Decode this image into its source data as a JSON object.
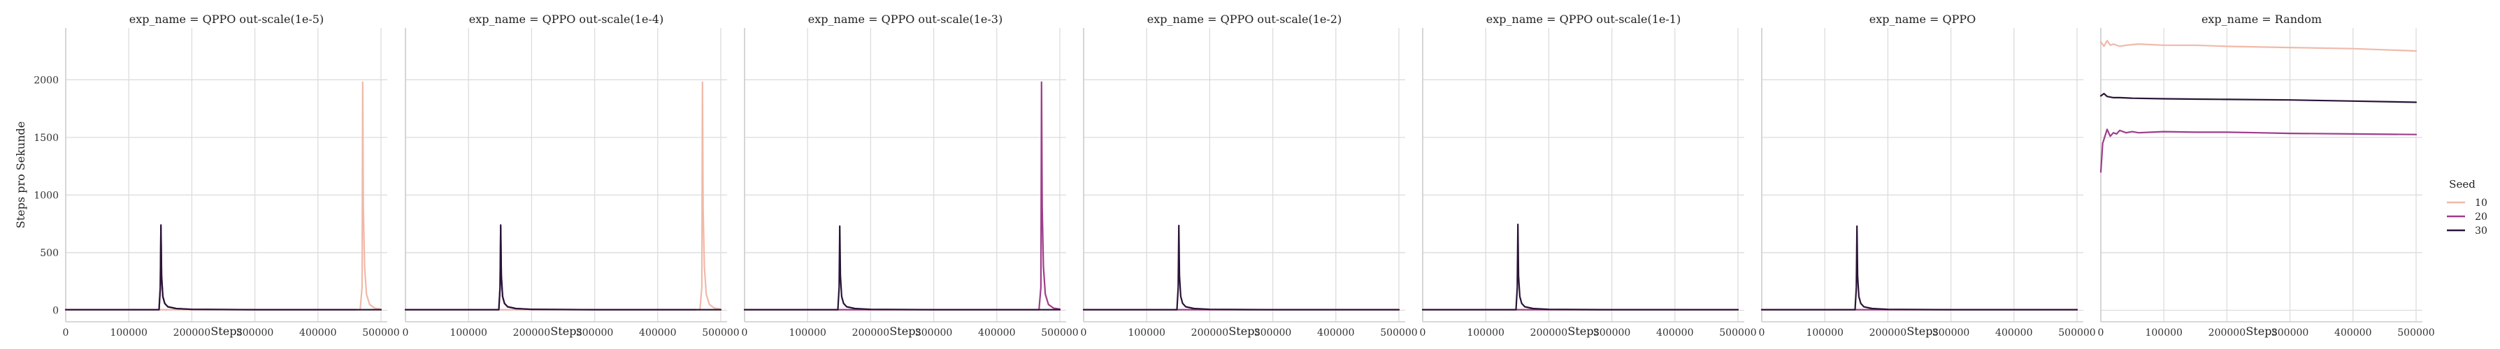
{
  "chart_data": {
    "type": "line",
    "ylabel": "Steps pro Sekunde",
    "xlabel": "Steps",
    "xlim": [
      0,
      510000
    ],
    "ylim": [
      -100,
      2450
    ],
    "x_ticks": [
      0,
      100000,
      200000,
      300000,
      400000,
      500000
    ],
    "y_ticks": [
      0,
      500,
      1000,
      1500,
      2000
    ],
    "grid": true,
    "legend": {
      "title": "Seed",
      "placement": "right",
      "entries": [
        {
          "label": "10",
          "color": "#f0b9a9"
        },
        {
          "label": "20",
          "color": "#9e3d8b"
        },
        {
          "label": "30",
          "color": "#2a1437"
        }
      ]
    },
    "panels": [
      {
        "title": "exp_name = QPPO out-scale(1e-5)",
        "series": [
          {
            "seed": "10",
            "x": [
              0,
              460000,
              467000,
              470000,
              471000,
              472000,
              474000,
              477000,
              482000,
              490000,
              500000
            ],
            "y": [
              5,
              5,
              5,
              200,
              1980,
              900,
              380,
              140,
              50,
              18,
              10
            ]
          },
          {
            "seed": "20",
            "x": [
              0,
              145000,
              148000,
              150000,
              151000,
              152000,
              154000,
              157000,
              162000,
              175000,
              200000,
              300000,
              400000,
              460000
            ],
            "y": [
              5,
              5,
              5,
              200,
              725,
              300,
              120,
              60,
              30,
              15,
              8,
              5,
              5,
              5
            ]
          },
          {
            "seed": "30",
            "x": [
              0,
              145000,
              148000,
              150000,
              151000,
              152000,
              154000,
              157000,
              162000,
              175000,
              200000,
              300000,
              400000,
              500000
            ],
            "y": [
              5,
              5,
              5,
              200,
              740,
              300,
              120,
              60,
              30,
              15,
              8,
              5,
              5,
              5
            ]
          }
        ]
      },
      {
        "title": "exp_name = QPPO out-scale(1e-4)",
        "series": [
          {
            "seed": "10",
            "x": [
              0,
              460000,
              467000,
              470000,
              471000,
              472000,
              474000,
              477000,
              482000,
              490000,
              500000
            ],
            "y": [
              5,
              5,
              5,
              200,
              1980,
              900,
              380,
              140,
              50,
              18,
              10
            ]
          },
          {
            "seed": "20",
            "x": [
              0,
              145000,
              148000,
              150000,
              151000,
              152000,
              154000,
              157000,
              162000,
              175000,
              200000,
              300000,
              400000,
              460000
            ],
            "y": [
              5,
              5,
              5,
              200,
              725,
              300,
              120,
              60,
              30,
              15,
              8,
              5,
              5,
              5
            ]
          },
          {
            "seed": "30",
            "x": [
              0,
              145000,
              148000,
              150000,
              151000,
              152000,
              154000,
              157000,
              162000,
              175000,
              200000,
              300000,
              400000,
              500000
            ],
            "y": [
              5,
              5,
              5,
              200,
              740,
              300,
              120,
              60,
              30,
              15,
              8,
              5,
              5,
              5
            ]
          }
        ]
      },
      {
        "title": "exp_name = QPPO out-scale(1e-3)",
        "series": [
          {
            "seed": "10",
            "x": [
              0,
              150000,
              300000,
              460000
            ],
            "y": [
              5,
              5,
              5,
              5
            ]
          },
          {
            "seed": "20",
            "x": [
              0,
              460000,
              467000,
              470000,
              471000,
              472000,
              474000,
              477000,
              482000,
              490000,
              500000
            ],
            "y": [
              5,
              5,
              5,
              200,
              1980,
              900,
              380,
              140,
              50,
              18,
              10
            ]
          },
          {
            "seed": "30",
            "x": [
              0,
              145000,
              148000,
              150000,
              151000,
              152000,
              154000,
              157000,
              162000,
              175000,
              200000,
              300000,
              400000,
              500000
            ],
            "y": [
              5,
              5,
              5,
              200,
              730,
              300,
              120,
              60,
              30,
              15,
              8,
              5,
              5,
              5
            ]
          }
        ]
      },
      {
        "title": "exp_name = QPPO out-scale(1e-2)",
        "series": [
          {
            "seed": "10",
            "x": [
              0,
              250000,
              500000
            ],
            "y": [
              5,
              5,
              5
            ]
          },
          {
            "seed": "20",
            "x": [
              0,
              250000,
              500000
            ],
            "y": [
              5,
              5,
              5
            ]
          },
          {
            "seed": "30",
            "x": [
              0,
              145000,
              148000,
              150000,
              151000,
              152000,
              154000,
              157000,
              162000,
              175000,
              200000,
              300000,
              400000,
              500000
            ],
            "y": [
              5,
              5,
              5,
              200,
              735,
              300,
              120,
              60,
              30,
              15,
              8,
              5,
              5,
              5
            ]
          }
        ]
      },
      {
        "title": "exp_name = QPPO out-scale(1e-1)",
        "series": [
          {
            "seed": "10",
            "x": [
              0,
              250000,
              500000
            ],
            "y": [
              5,
              5,
              5
            ]
          },
          {
            "seed": "20",
            "x": [
              0,
              250000,
              500000
            ],
            "y": [
              5,
              5,
              5
            ]
          },
          {
            "seed": "30",
            "x": [
              0,
              145000,
              148000,
              150000,
              151000,
              152000,
              154000,
              157000,
              162000,
              175000,
              200000,
              300000,
              400000,
              500000
            ],
            "y": [
              5,
              5,
              5,
              200,
              745,
              300,
              120,
              60,
              30,
              15,
              8,
              5,
              5,
              5
            ]
          }
        ]
      },
      {
        "title": "exp_name = QPPO",
        "series": [
          {
            "seed": "10",
            "x": [
              0,
              250000,
              500000
            ],
            "y": [
              5,
              5,
              5
            ]
          },
          {
            "seed": "20",
            "x": [
              0,
              250000,
              500000
            ],
            "y": [
              5,
              5,
              5
            ]
          },
          {
            "seed": "30",
            "x": [
              0,
              145000,
              148000,
              150000,
              151000,
              152000,
              154000,
              157000,
              162000,
              175000,
              200000,
              300000,
              400000,
              500000
            ],
            "y": [
              5,
              5,
              5,
              200,
              730,
              300,
              120,
              60,
              30,
              15,
              8,
              5,
              5,
              5
            ]
          }
        ]
      },
      {
        "title": "exp_name = Random",
        "series": [
          {
            "seed": "10",
            "x": [
              0,
              5000,
              10000,
              15000,
              20000,
              30000,
              40000,
              60000,
              100000,
              150000,
              200000,
              300000,
              400000,
              500000
            ],
            "y": [
              2330,
              2290,
              2340,
              2300,
              2310,
              2290,
              2300,
              2310,
              2300,
              2300,
              2290,
              2280,
              2270,
              2250
            ]
          },
          {
            "seed": "20",
            "x": [
              0,
              3000,
              6000,
              10000,
              15000,
              20000,
              25000,
              30000,
              40000,
              50000,
              60000,
              80000,
              100000,
              150000,
              200000,
              250000,
              300000,
              400000,
              500000
            ],
            "y": [
              1200,
              1450,
              1500,
              1570,
              1510,
              1540,
              1530,
              1560,
              1540,
              1550,
              1540,
              1545,
              1550,
              1545,
              1545,
              1540,
              1535,
              1530,
              1525
            ]
          },
          {
            "seed": "30",
            "x": [
              0,
              5000,
              10000,
              15000,
              20000,
              30000,
              50000,
              100000,
              150000,
              200000,
              300000,
              400000,
              500000
            ],
            "y": [
              1860,
              1880,
              1855,
              1850,
              1845,
              1845,
              1840,
              1835,
              1832,
              1830,
              1825,
              1815,
              1805
            ]
          }
        ]
      }
    ]
  }
}
